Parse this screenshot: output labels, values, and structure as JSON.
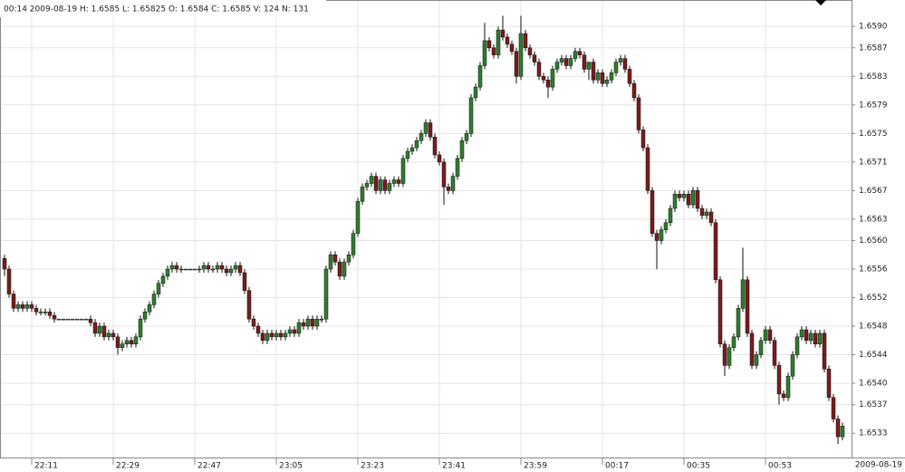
{
  "chart_data": {
    "type": "candlestick",
    "header": "00:14 2009-08-19 H: 1.6585 L: 1.65825 O: 1.6584 C: 1.6585 V: 124 N: 131",
    "date_label": "2009-08-19",
    "up_color": "#2f7d2f",
    "down_color": "#7a1c1c",
    "grid": true,
    "ylim": [
      1.65296,
      1.65937
    ],
    "yticks": [
      {
        "value": 1.659,
        "label": "1.6590"
      },
      1.6587,
      1.6583,
      1.6579,
      1.6575,
      1.6571,
      1.6567,
      1.6563,
      {
        "value": 1.656,
        "label": "1.6560"
      },
      1.6556,
      1.6552,
      1.6548,
      1.6544,
      {
        "value": 1.654,
        "label": "1.6540"
      },
      1.6537,
      1.6533
    ],
    "categories": [
      null,
      null,
      null,
      null,
      null,
      null,
      "22:11",
      null,
      null,
      null,
      null,
      null,
      null,
      null,
      null,
      null,
      null,
      null,
      null,
      null,
      null,
      null,
      null,
      null,
      "22:29",
      null,
      null,
      null,
      null,
      null,
      null,
      null,
      null,
      null,
      null,
      null,
      null,
      null,
      null,
      null,
      null,
      null,
      "22:47",
      null,
      null,
      null,
      null,
      null,
      null,
      null,
      null,
      null,
      null,
      null,
      null,
      null,
      null,
      null,
      null,
      null,
      "23:05",
      null,
      null,
      null,
      null,
      null,
      null,
      null,
      null,
      null,
      null,
      null,
      null,
      null,
      null,
      null,
      null,
      null,
      "23:23",
      null,
      null,
      null,
      null,
      null,
      null,
      null,
      null,
      null,
      null,
      null,
      null,
      null,
      null,
      null,
      null,
      null,
      "23:41",
      null,
      null,
      null,
      null,
      null,
      null,
      null,
      null,
      null,
      null,
      null,
      null,
      null,
      null,
      null,
      null,
      null,
      "23:59",
      null,
      null,
      null,
      null,
      null,
      null,
      null,
      null,
      null,
      null,
      null,
      null,
      null,
      null,
      null,
      null,
      null,
      "00:17",
      null,
      null,
      null,
      null,
      null,
      null,
      null,
      null,
      null,
      null,
      null,
      null,
      null,
      null,
      null,
      null,
      null,
      "00:35",
      null,
      null,
      null,
      null,
      null,
      null,
      null,
      null,
      null,
      null,
      null,
      null,
      null,
      null,
      null,
      null,
      null,
      "00:53",
      null,
      null,
      null,
      null,
      null,
      null,
      null,
      null,
      null,
      null,
      null,
      null,
      null,
      null,
      null,
      null,
      null
    ],
    "open": [
      1.65575,
      1.6556,
      1.65525,
      1.65505,
      1.6551,
      1.65505,
      1.6551,
      1.65505,
      1.655,
      1.655,
      1.655,
      1.65495,
      1.6549,
      1.6549,
      1.6549,
      1.6549,
      1.6549,
      1.6549,
      1.6549,
      1.6549,
      1.65485,
      1.6547,
      1.6548,
      1.65465,
      1.6547,
      1.65465,
      1.6545,
      1.65455,
      1.6546,
      1.65455,
      1.65465,
      1.6549,
      1.655,
      1.6551,
      1.65525,
      1.6554,
      1.6555,
      1.6556,
      1.65565,
      1.6556,
      1.6556,
      1.6556,
      1.6556,
      1.6556,
      1.6556,
      1.65565,
      1.6556,
      1.6556,
      1.65565,
      1.6556,
      1.65555,
      1.6556,
      1.65565,
      1.65555,
      1.6553,
      1.6549,
      1.6548,
      1.6547,
      1.6546,
      1.6547,
      1.65465,
      1.6547,
      1.65465,
      1.6547,
      1.65475,
      1.6547,
      1.65485,
      1.6548,
      1.6549,
      1.6548,
      1.6549,
      1.6549,
      1.6556,
      1.6558,
      1.6557,
      1.6555,
      1.6557,
      1.6558,
      1.6561,
      1.65655,
      1.65675,
      1.6568,
      1.6569,
      1.6567,
      1.65685,
      1.6567,
      1.6568,
      1.65685,
      1.6568,
      1.65715,
      1.65725,
      1.6573,
      1.6574,
      1.6575,
      1.65765,
      1.65745,
      1.6572,
      1.6571,
      1.65675,
      1.6567,
      1.6569,
      1.65715,
      1.6574,
      1.6575,
      1.658,
      1.65815,
      1.65845,
      1.6588,
      1.6587,
      1.6586,
      1.65895,
      1.65885,
      1.65875,
      1.65865,
      1.6583,
      1.6589,
      1.6587,
      1.6586,
      1.6585,
      1.6583,
      1.65825,
      1.65815,
      1.6584,
      1.6585,
      1.65855,
      1.65845,
      1.65855,
      1.65865,
      1.6586,
      1.6584,
      1.6585,
      1.65825,
      1.65835,
      1.6582,
      1.65825,
      1.65835,
      1.6585,
      1.65855,
      1.6584,
      1.6582,
      1.658,
      1.65755,
      1.6573,
      1.6567,
      1.6561,
      1.656,
      1.65615,
      1.65625,
      1.65645,
      1.65665,
      1.6566,
      1.65665,
      1.6565,
      1.6567,
      1.65645,
      1.65635,
      1.6564,
      1.65625,
      1.65545,
      1.65455,
      1.65425,
      1.6545,
      1.65465,
      1.65505,
      1.65545,
      1.6547,
      1.65425,
      1.6544,
      1.6546,
      1.65475,
      1.6546,
      1.65425,
      1.65385,
      1.6538,
      1.6541,
      1.6544,
      1.65465,
      1.65475,
      1.6546,
      1.6547,
      1.65455,
      1.6547,
      1.6542,
      1.6538,
      1.6535,
      1.65325
    ],
    "high": [
      1.6558,
      1.65565,
      1.6553,
      1.65515,
      1.65515,
      1.65515,
      1.65515,
      1.6551,
      1.65505,
      1.65505,
      1.65505,
      1.655,
      1.6549,
      1.6549,
      1.6549,
      1.6549,
      1.6549,
      1.6549,
      1.6549,
      1.65495,
      1.6549,
      1.65485,
      1.65485,
      1.65475,
      1.65475,
      1.6547,
      1.6546,
      1.65465,
      1.65465,
      1.6547,
      1.65495,
      1.65505,
      1.65515,
      1.6553,
      1.65545,
      1.65555,
      1.65565,
      1.6557,
      1.6557,
      1.65565,
      1.6556,
      1.6556,
      1.6556,
      1.65565,
      1.6557,
      1.6557,
      1.65565,
      1.6557,
      1.6557,
      1.65565,
      1.65565,
      1.6557,
      1.6557,
      1.6556,
      1.65535,
      1.65495,
      1.65485,
      1.65475,
      1.65475,
      1.65475,
      1.65475,
      1.65475,
      1.65475,
      1.6548,
      1.6548,
      1.6549,
      1.6549,
      1.65495,
      1.65495,
      1.65495,
      1.65495,
      1.65565,
      1.65585,
      1.65585,
      1.65575,
      1.65575,
      1.65585,
      1.65615,
      1.6566,
      1.6568,
      1.65685,
      1.65695,
      1.65695,
      1.6569,
      1.6569,
      1.65685,
      1.6569,
      1.6569,
      1.6572,
      1.6573,
      1.65735,
      1.65745,
      1.65755,
      1.6577,
      1.6577,
      1.6575,
      1.65725,
      1.65715,
      1.6568,
      1.65695,
      1.6572,
      1.65745,
      1.65755,
      1.65805,
      1.6582,
      1.6585,
      1.65905,
      1.65885,
      1.65875,
      1.659,
      1.65915,
      1.6589,
      1.6588,
      1.6587,
      1.65915,
      1.65895,
      1.65875,
      1.65865,
      1.65855,
      1.65835,
      1.6583,
      1.65845,
      1.65855,
      1.6586,
      1.6586,
      1.6586,
      1.6587,
      1.6587,
      1.65865,
      1.6585,
      1.65855,
      1.6584,
      1.6584,
      1.6583,
      1.6584,
      1.65855,
      1.6586,
      1.6586,
      1.65845,
      1.65825,
      1.65805,
      1.6576,
      1.65735,
      1.65675,
      1.65615,
      1.6562,
      1.6563,
      1.6565,
      1.6567,
      1.6567,
      1.6567,
      1.6567,
      1.65675,
      1.65675,
      1.6565,
      1.65645,
      1.65645,
      1.6563,
      1.6555,
      1.6546,
      1.65455,
      1.6547,
      1.6551,
      1.6559,
      1.6555,
      1.65475,
      1.65445,
      1.65465,
      1.6548,
      1.6548,
      1.65465,
      1.6543,
      1.6539,
      1.65415,
      1.65445,
      1.6547,
      1.6548,
      1.6548,
      1.65475,
      1.65475,
      1.65475,
      1.65475,
      1.65425,
      1.65385,
      1.65355,
      1.65345
    ],
    "low": [
      1.6555,
      1.6552,
      1.655,
      1.655,
      1.655,
      1.655,
      1.655,
      1.65495,
      1.65495,
      1.65495,
      1.6549,
      1.65485,
      1.6549,
      1.6549,
      1.6549,
      1.6549,
      1.6549,
      1.6549,
      1.6549,
      1.6548,
      1.65465,
      1.65465,
      1.6546,
      1.6546,
      1.6546,
      1.6544,
      1.65445,
      1.6545,
      1.6545,
      1.6545,
      1.6546,
      1.65485,
      1.65495,
      1.65505,
      1.6552,
      1.65535,
      1.65545,
      1.65555,
      1.65555,
      1.65555,
      1.6556,
      1.6556,
      1.6556,
      1.65555,
      1.65555,
      1.65555,
      1.65555,
      1.65555,
      1.65555,
      1.6555,
      1.6555,
      1.65555,
      1.6555,
      1.65525,
      1.65485,
      1.65475,
      1.65465,
      1.65455,
      1.65455,
      1.6546,
      1.6546,
      1.6546,
      1.6546,
      1.65465,
      1.65465,
      1.65465,
      1.65475,
      1.65475,
      1.65475,
      1.65475,
      1.65485,
      1.65485,
      1.65555,
      1.65565,
      1.65545,
      1.65545,
      1.65565,
      1.65575,
      1.65605,
      1.6565,
      1.6567,
      1.65675,
      1.65665,
      1.65665,
      1.65665,
      1.65665,
      1.65675,
      1.65675,
      1.65675,
      1.6571,
      1.6572,
      1.65725,
      1.65735,
      1.65745,
      1.6574,
      1.65715,
      1.65705,
      1.6565,
      1.65665,
      1.65665,
      1.65685,
      1.6571,
      1.65735,
      1.65745,
      1.65795,
      1.6581,
      1.6584,
      1.65865,
      1.65855,
      1.65855,
      1.6588,
      1.6587,
      1.6586,
      1.6582,
      1.65825,
      1.65865,
      1.65855,
      1.65845,
      1.65825,
      1.6582,
      1.658,
      1.6581,
      1.65835,
      1.65845,
      1.6584,
      1.6584,
      1.6585,
      1.65855,
      1.65835,
      1.65825,
      1.6582,
      1.6582,
      1.65815,
      1.65815,
      1.6582,
      1.6583,
      1.65845,
      1.65835,
      1.65815,
      1.65795,
      1.6575,
      1.65725,
      1.65665,
      1.65605,
      1.6556,
      1.65595,
      1.6561,
      1.6562,
      1.6564,
      1.65655,
      1.65655,
      1.65645,
      1.65645,
      1.6564,
      1.6563,
      1.6563,
      1.6562,
      1.6554,
      1.6545,
      1.6541,
      1.6542,
      1.65445,
      1.6546,
      1.655,
      1.65465,
      1.6542,
      1.6542,
      1.65435,
      1.65455,
      1.65455,
      1.6542,
      1.6537,
      1.65375,
      1.65375,
      1.65405,
      1.65435,
      1.6546,
      1.65455,
      1.65455,
      1.6545,
      1.6545,
      1.65415,
      1.65375,
      1.65345,
      1.65315,
      1.6532
    ],
    "close": [
      1.6556,
      1.65525,
      1.65505,
      1.6551,
      1.65505,
      1.6551,
      1.65505,
      1.655,
      1.655,
      1.655,
      1.65495,
      1.6549,
      1.6549,
      1.6549,
      1.6549,
      1.6549,
      1.6549,
      1.6549,
      1.6549,
      1.65485,
      1.6547,
      1.6548,
      1.65465,
      1.6547,
      1.65465,
      1.6545,
      1.65455,
      1.6546,
      1.65455,
      1.65465,
      1.6549,
      1.655,
      1.6551,
      1.65525,
      1.6554,
      1.6555,
      1.6556,
      1.65565,
      1.6556,
      1.6556,
      1.6556,
      1.6556,
      1.6556,
      1.6556,
      1.65565,
      1.6556,
      1.6556,
      1.65565,
      1.6556,
      1.65555,
      1.6556,
      1.65565,
      1.65555,
      1.6553,
      1.6549,
      1.6548,
      1.6547,
      1.6546,
      1.6547,
      1.65465,
      1.6547,
      1.65465,
      1.6547,
      1.65475,
      1.6547,
      1.65485,
      1.6548,
      1.6549,
      1.6548,
      1.6549,
      1.6549,
      1.6556,
      1.6558,
      1.6557,
      1.6555,
      1.6557,
      1.6558,
      1.6561,
      1.65655,
      1.65675,
      1.6568,
      1.6569,
      1.6567,
      1.65685,
      1.6567,
      1.6568,
      1.65685,
      1.6568,
      1.65715,
      1.65725,
      1.6573,
      1.6574,
      1.6575,
      1.65765,
      1.65745,
      1.6572,
      1.6571,
      1.65675,
      1.6567,
      1.6569,
      1.65715,
      1.6574,
      1.6575,
      1.658,
      1.65815,
      1.65845,
      1.6588,
      1.6587,
      1.6586,
      1.65895,
      1.65885,
      1.65875,
      1.65865,
      1.6583,
      1.6589,
      1.6587,
      1.6586,
      1.6585,
      1.6583,
      1.65825,
      1.65815,
      1.6584,
      1.6585,
      1.65855,
      1.65845,
      1.65855,
      1.65865,
      1.6586,
      1.6584,
      1.6585,
      1.65825,
      1.65835,
      1.6582,
      1.65825,
      1.65835,
      1.6585,
      1.65855,
      1.6584,
      1.6582,
      1.658,
      1.65755,
      1.6573,
      1.6567,
      1.6561,
      1.656,
      1.65615,
      1.65625,
      1.65645,
      1.65665,
      1.6566,
      1.65665,
      1.6565,
      1.6567,
      1.65645,
      1.65635,
      1.6564,
      1.65625,
      1.65545,
      1.65455,
      1.65425,
      1.6545,
      1.65465,
      1.65505,
      1.65545,
      1.6547,
      1.65425,
      1.6544,
      1.6546,
      1.65475,
      1.6546,
      1.65425,
      1.65385,
      1.6538,
      1.6541,
      1.6544,
      1.65465,
      1.65475,
      1.6546,
      1.6547,
      1.65455,
      1.6547,
      1.6542,
      1.6538,
      1.6535,
      1.65325,
      1.6534
    ]
  }
}
